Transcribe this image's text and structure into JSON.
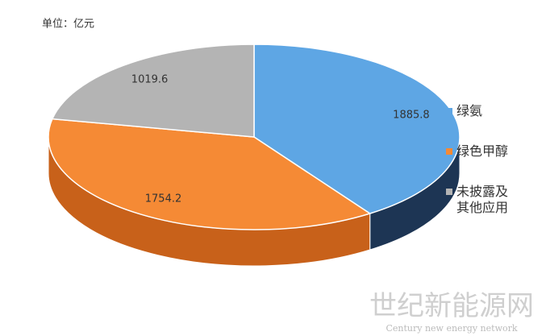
{
  "chart_data": {
    "type": "pie3d",
    "unit_label": "单位：亿元",
    "categories": [
      "绿氨",
      "绿色甲醇",
      "未披露及其他应用"
    ],
    "values": [
      1885.8,
      1754.2,
      1019.6
    ],
    "colors": [
      "#5ea6e4",
      "#f58a35",
      "#b4b4b4"
    ],
    "side_colors": [
      "#1d3554",
      "#c8611a",
      "#8a8a8a"
    ],
    "legend": "right"
  },
  "watermark": {
    "title": "世纪新能源网",
    "subtitle": "Century new energy network"
  }
}
